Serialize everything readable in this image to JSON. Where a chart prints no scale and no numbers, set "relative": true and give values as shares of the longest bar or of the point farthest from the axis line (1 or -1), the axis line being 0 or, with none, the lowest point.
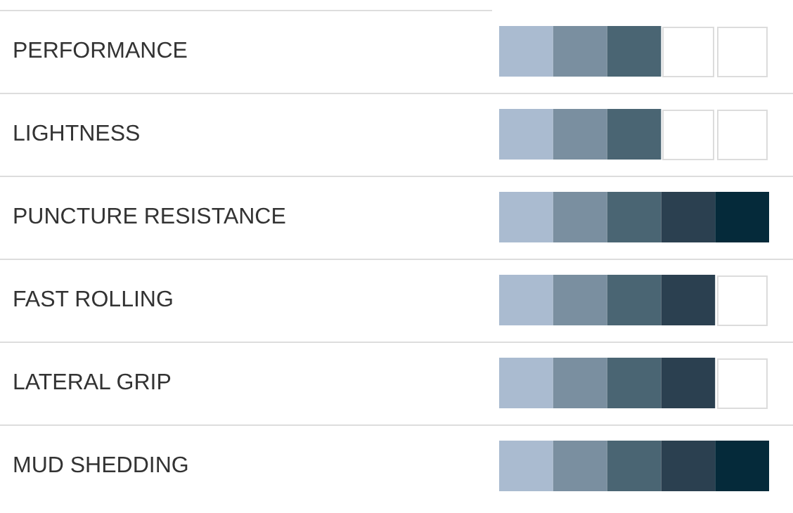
{
  "chart_data": {
    "type": "bar",
    "orientation": "horizontal",
    "stacked": true,
    "relative": true,
    "categories": [
      "PERFORMANCE",
      "LIGHTNESS",
      "PUNCTURE RESISTANCE",
      "FAST ROLLING",
      "LATERAL GRIP",
      "MUD SHEDDING"
    ],
    "series": [
      {
        "color": "#aabbd0",
        "values": [
          0.2,
          0.2,
          0.2,
          0.2,
          0.2,
          0.2
        ]
      },
      {
        "color": "#7a8fa0",
        "values": [
          0.2,
          0.2,
          0.2,
          0.2,
          0.2,
          0.2
        ]
      },
      {
        "color": "#4a6573",
        "values": [
          0.2,
          0.2,
          0.2,
          0.2,
          0.2,
          0.2
        ]
      },
      {
        "color": "#2b4050",
        "values": [
          null,
          null,
          0.2,
          0.2,
          0.2,
          0.2
        ]
      },
      {
        "color": "#052a3a",
        "values": [
          null,
          null,
          0.2,
          null,
          null,
          0.2
        ]
      }
    ]
  }
}
